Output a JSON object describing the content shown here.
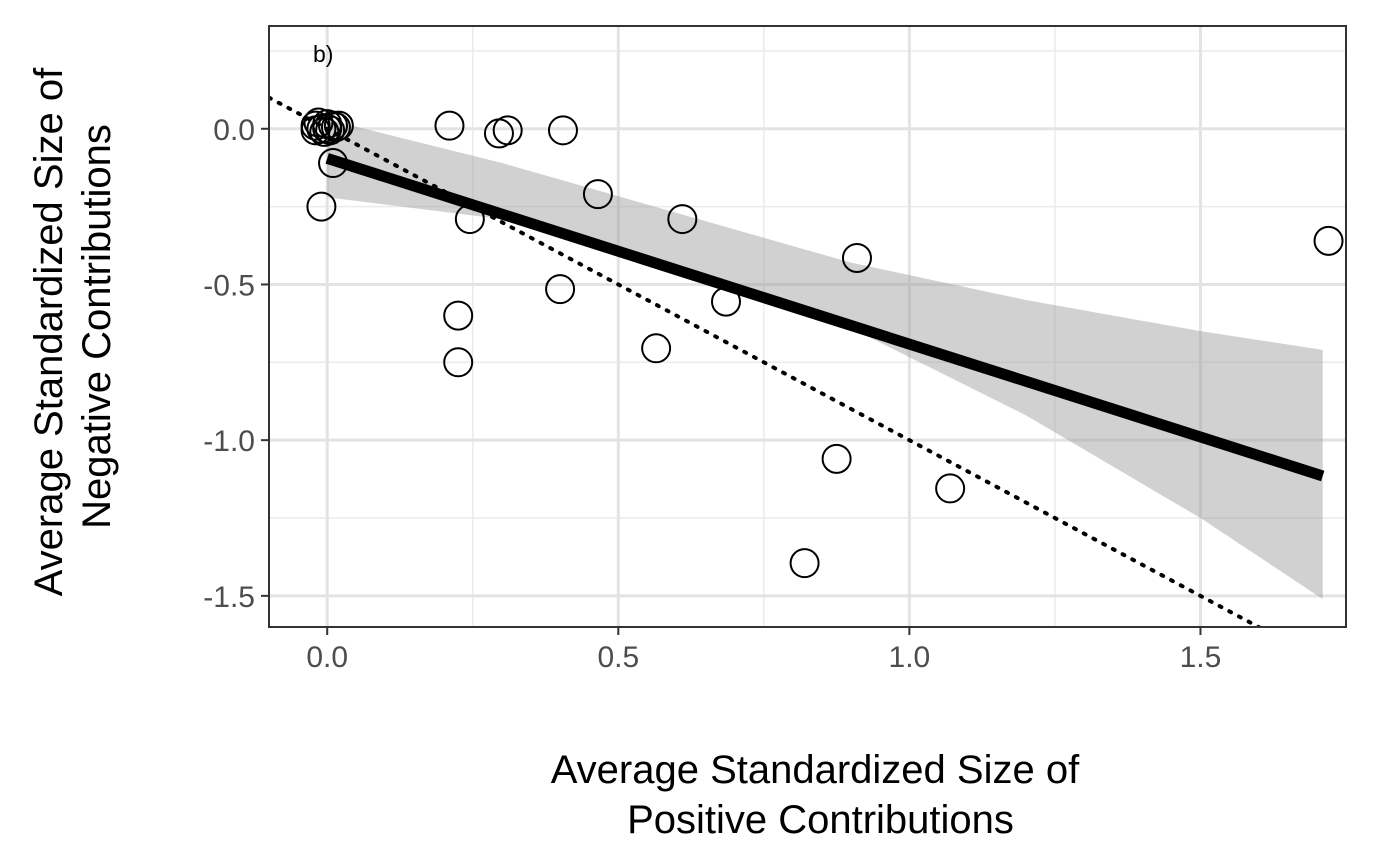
{
  "chart_data": {
    "type": "scatter",
    "panel_label": "b)",
    "xlabel": [
      "Average Standardized Size of",
      "Positive Contributions"
    ],
    "ylabel": [
      "Average Standardized Size of",
      "Negative Contributions"
    ],
    "xlim": [
      -0.1,
      1.75
    ],
    "ylim": [
      -1.6,
      0.33
    ],
    "x_ticks": [
      0.0,
      0.5,
      1.0,
      1.5
    ],
    "x_tick_labels": [
      "0.0",
      "0.5",
      "1.0",
      "1.5"
    ],
    "y_ticks": [
      0.0,
      -0.5,
      -1.0,
      -1.5
    ],
    "y_tick_labels": [
      "0.0",
      "-0.5",
      "-1.0",
      "-1.5"
    ],
    "grid": true,
    "points": [
      {
        "x": -0.02,
        "y": 0.01
      },
      {
        "x": -0.015,
        "y": 0.02
      },
      {
        "x": -0.01,
        "y": 0.0
      },
      {
        "x": -0.005,
        "y": -0.01
      },
      {
        "x": 0.0,
        "y": 0.015
      },
      {
        "x": 0.005,
        "y": -0.005
      },
      {
        "x": 0.01,
        "y": 0.01
      },
      {
        "x": 0.015,
        "y": 0.005
      },
      {
        "x": -0.02,
        "y": -0.005
      },
      {
        "x": 0.0,
        "y": 0.0
      },
      {
        "x": 0.02,
        "y": 0.01
      },
      {
        "x": 0.01,
        "y": -0.11
      },
      {
        "x": -0.01,
        "y": -0.25
      },
      {
        "x": 0.21,
        "y": 0.01
      },
      {
        "x": 0.295,
        "y": -0.015
      },
      {
        "x": 0.31,
        "y": -0.005
      },
      {
        "x": 0.405,
        "y": -0.005
      },
      {
        "x": 0.465,
        "y": -0.21
      },
      {
        "x": 0.245,
        "y": -0.29
      },
      {
        "x": 0.61,
        "y": -0.29
      },
      {
        "x": 0.225,
        "y": -0.6
      },
      {
        "x": 0.225,
        "y": -0.75
      },
      {
        "x": 0.4,
        "y": -0.515
      },
      {
        "x": 0.565,
        "y": -0.705
      },
      {
        "x": 0.685,
        "y": -0.555
      },
      {
        "x": 0.91,
        "y": -0.415
      },
      {
        "x": 0.875,
        "y": -1.06
      },
      {
        "x": 1.07,
        "y": -1.155
      },
      {
        "x": 0.82,
        "y": -1.395
      },
      {
        "x": 1.72,
        "y": -0.36
      }
    ],
    "fit_line": {
      "x": [
        0.0,
        1.71
      ],
      "y": [
        -0.095,
        -1.115
      ]
    },
    "confidence_band": {
      "x": [
        0.0,
        0.3,
        0.6,
        0.9,
        1.2,
        1.5,
        1.71
      ],
      "upper": [
        0.03,
        -0.11,
        -0.27,
        -0.43,
        -0.55,
        -0.65,
        -0.71
      ],
      "lower": [
        -0.22,
        -0.29,
        -0.44,
        -0.64,
        -0.92,
        -1.25,
        -1.51
      ]
    },
    "reference_line": {
      "x": [
        -0.1,
        1.75
      ],
      "y": [
        0.1,
        -1.75
      ],
      "style": "dotted"
    }
  }
}
